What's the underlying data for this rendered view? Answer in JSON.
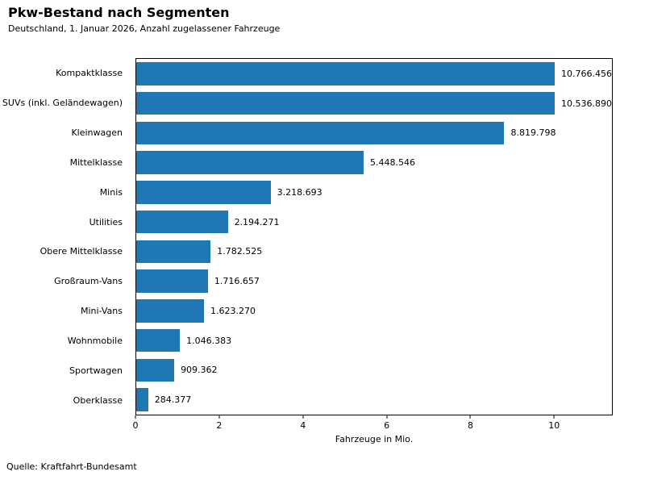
{
  "chart_data": {
    "type": "bar",
    "orientation": "horizontal",
    "title": "Pkw-Bestand nach Segmenten",
    "subtitle": "Deutschland, 1. Januar 2026, Anzahl zugelassener Fahrzeuge",
    "categories": [
      "Kompaktklasse",
      "SUVs (inkl. Geländewagen)",
      "Kleinwagen",
      "Mittelklasse",
      "Minis",
      "Utilities",
      "Obere Mittelklasse",
      "Großraum-Vans",
      "Mini-Vans",
      "Wohnmobile",
      "Sportwagen",
      "Oberklasse"
    ],
    "values": [
      10766456,
      10536890,
      8819798,
      5448546,
      3218693,
      2194271,
      1782525,
      1716657,
      1623270,
      1046383,
      909362,
      284377
    ],
    "value_labels": [
      "10.766.456",
      "10.536.890",
      "8.819.798",
      "5.448.546",
      "3.218.693",
      "2.194.271",
      "1.782.525",
      "1.716.657",
      "1.623.270",
      "1.046.383",
      "909.362",
      "284.377"
    ],
    "xlabel": "Fahrzeuge in Mio.",
    "xticks": [
      0,
      2,
      4,
      6,
      8,
      10
    ],
    "xlim": [
      0,
      11.4
    ],
    "bar_color": "#1f77b4",
    "grid": false,
    "legend": "none",
    "source": "Quelle: Kraftfahrt-Bundesamt"
  }
}
